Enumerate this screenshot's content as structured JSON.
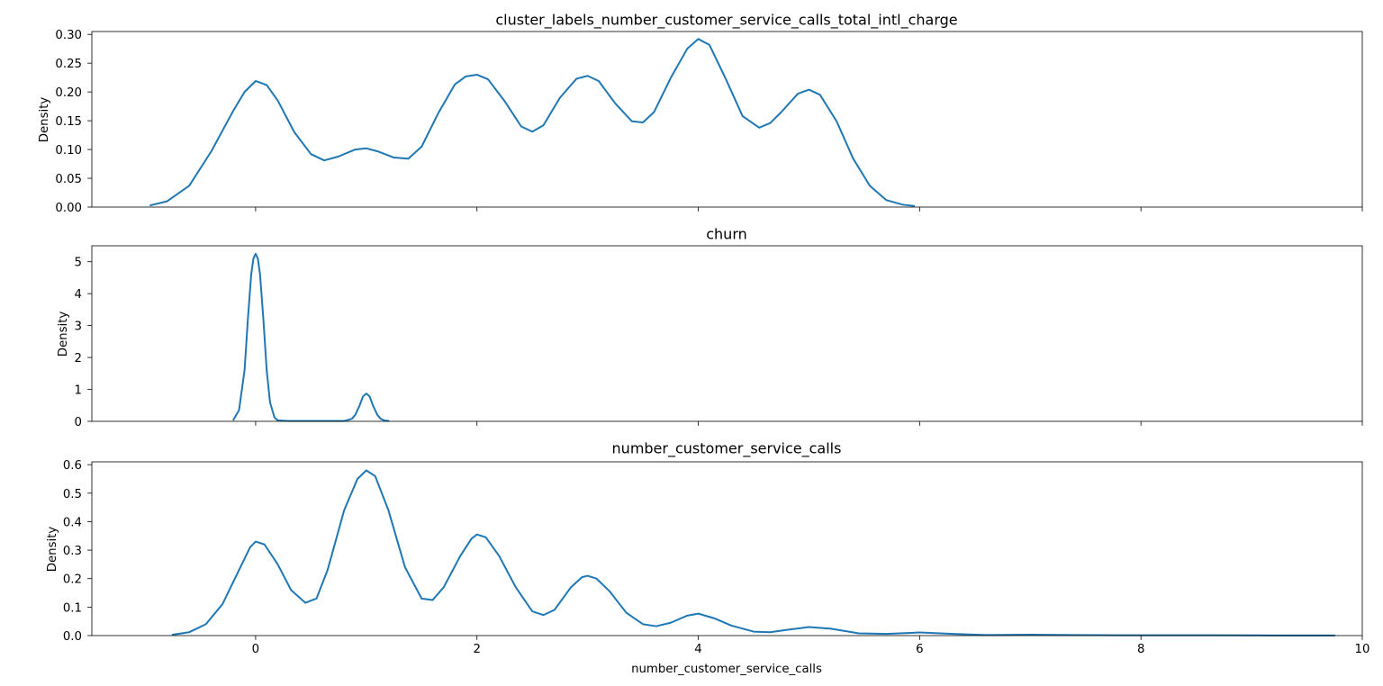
{
  "chart_data": [
    {
      "type": "line",
      "title": "cluster_labels_number_customer_service_calls_total_intl_charge",
      "xlabel": "",
      "ylabel": "Density",
      "xlim": [
        -1.48,
        10.0
      ],
      "ylim": [
        0.0,
        0.305
      ],
      "xticks": [
        0,
        2,
        4,
        6,
        8,
        10
      ],
      "yticks": [
        0.0,
        0.05,
        0.1,
        0.15,
        0.2,
        0.25,
        0.3
      ],
      "ytick_labels": [
        "0.00",
        "0.05",
        "0.10",
        "0.15",
        "0.20",
        "0.25",
        "0.30"
      ],
      "show_xtick_labels": false,
      "grid": false,
      "color": "#1f77b4",
      "x": [
        -0.95,
        -0.8,
        -0.6,
        -0.4,
        -0.2,
        -0.1,
        0.0,
        0.1,
        0.2,
        0.35,
        0.5,
        0.62,
        0.75,
        0.9,
        1.0,
        1.1,
        1.25,
        1.38,
        1.5,
        1.65,
        1.8,
        1.9,
        2.0,
        2.1,
        2.25,
        2.4,
        2.5,
        2.6,
        2.75,
        2.9,
        3.0,
        3.1,
        3.25,
        3.4,
        3.5,
        3.6,
        3.75,
        3.9,
        4.0,
        4.1,
        4.25,
        4.4,
        4.55,
        4.65,
        4.75,
        4.9,
        5.0,
        5.1,
        5.25,
        5.4,
        5.55,
        5.7,
        5.85,
        5.95
      ],
      "y": [
        0.003,
        0.01,
        0.037,
        0.097,
        0.168,
        0.2,
        0.219,
        0.212,
        0.185,
        0.13,
        0.092,
        0.081,
        0.088,
        0.1,
        0.102,
        0.097,
        0.086,
        0.084,
        0.105,
        0.163,
        0.213,
        0.227,
        0.23,
        0.222,
        0.184,
        0.14,
        0.131,
        0.142,
        0.19,
        0.223,
        0.228,
        0.219,
        0.18,
        0.149,
        0.147,
        0.165,
        0.224,
        0.275,
        0.292,
        0.282,
        0.222,
        0.158,
        0.138,
        0.146,
        0.165,
        0.197,
        0.204,
        0.195,
        0.149,
        0.084,
        0.037,
        0.012,
        0.004,
        0.002
      ]
    },
    {
      "type": "line",
      "title": "churn",
      "xlabel": "",
      "ylabel": "Density",
      "xlim": [
        -1.48,
        10.0
      ],
      "ylim": [
        0.0,
        5.5
      ],
      "xticks": [
        0,
        2,
        4,
        6,
        8,
        10
      ],
      "yticks": [
        0,
        1,
        2,
        3,
        4,
        5
      ],
      "ytick_labels": [
        "0",
        "1",
        "2",
        "3",
        "4",
        "5"
      ],
      "show_xtick_labels": false,
      "grid": false,
      "color": "#1f77b4",
      "x": [
        -0.2,
        -0.15,
        -0.1,
        -0.07,
        -0.04,
        -0.02,
        0.0,
        0.02,
        0.04,
        0.07,
        0.1,
        0.13,
        0.17,
        0.2,
        0.3,
        0.5,
        0.8,
        0.87,
        0.9,
        0.94,
        0.97,
        1.0,
        1.03,
        1.06,
        1.1,
        1.13,
        1.16,
        1.2
      ],
      "y": [
        0.05,
        0.35,
        1.6,
        3.2,
        4.6,
        5.1,
        5.25,
        5.1,
        4.6,
        3.2,
        1.6,
        0.6,
        0.12,
        0.03,
        0.01,
        0.01,
        0.01,
        0.08,
        0.2,
        0.5,
        0.78,
        0.87,
        0.78,
        0.5,
        0.2,
        0.08,
        0.03,
        0.01
      ]
    },
    {
      "type": "line",
      "title": "number_customer_service_calls",
      "xlabel": "number_customer_service_calls",
      "ylabel": "Density",
      "xlim": [
        -1.48,
        10.0
      ],
      "ylim": [
        0.0,
        0.61
      ],
      "xticks": [
        0,
        2,
        4,
        6,
        8,
        10
      ],
      "xtick_labels": [
        "0",
        "2",
        "4",
        "6",
        "8",
        "10"
      ],
      "yticks": [
        0.0,
        0.1,
        0.2,
        0.3,
        0.4,
        0.5,
        0.6
      ],
      "ytick_labels": [
        "0.0",
        "0.1",
        "0.2",
        "0.3",
        "0.4",
        "0.5",
        "0.6"
      ],
      "show_xtick_labels": true,
      "grid": false,
      "color": "#1f77b4",
      "x": [
        -0.75,
        -0.6,
        -0.45,
        -0.3,
        -0.15,
        -0.05,
        0.0,
        0.08,
        0.2,
        0.32,
        0.45,
        0.55,
        0.65,
        0.8,
        0.92,
        1.0,
        1.08,
        1.2,
        1.35,
        1.5,
        1.6,
        1.7,
        1.85,
        1.95,
        2.0,
        2.08,
        2.2,
        2.35,
        2.5,
        2.6,
        2.7,
        2.85,
        2.95,
        3.0,
        3.08,
        3.2,
        3.35,
        3.5,
        3.62,
        3.75,
        3.9,
        4.0,
        4.15,
        4.3,
        4.5,
        4.65,
        4.8,
        5.0,
        5.2,
        5.45,
        5.7,
        6.0,
        6.3,
        6.6,
        7.0,
        7.4,
        7.8,
        8.2,
        8.7,
        9.2,
        9.75
      ],
      "y": [
        0.003,
        0.012,
        0.04,
        0.11,
        0.23,
        0.31,
        0.33,
        0.32,
        0.25,
        0.16,
        0.115,
        0.13,
        0.23,
        0.44,
        0.55,
        0.58,
        0.56,
        0.44,
        0.24,
        0.13,
        0.125,
        0.17,
        0.28,
        0.34,
        0.355,
        0.345,
        0.28,
        0.17,
        0.085,
        0.072,
        0.09,
        0.17,
        0.205,
        0.21,
        0.2,
        0.155,
        0.08,
        0.04,
        0.033,
        0.045,
        0.07,
        0.077,
        0.06,
        0.035,
        0.014,
        0.012,
        0.02,
        0.03,
        0.024,
        0.008,
        0.006,
        0.011,
        0.006,
        0.002,
        0.003,
        0.002,
        0.001,
        0.001,
        0.001,
        0.0005,
        0.0005
      ]
    }
  ]
}
